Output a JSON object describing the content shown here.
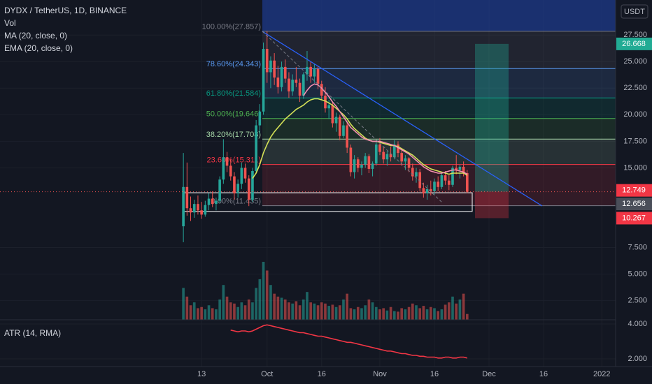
{
  "header": {
    "symbol": "DYDX / TetherUS, 1D, BINANCE",
    "volume_label": "Vol",
    "atr_title": "ATR (14, RMA)"
  },
  "chart_data": {
    "type": "candlestick",
    "currency": "USDT",
    "up_color": "#26a69a",
    "down_color": "#ef5350",
    "ylim": [
      0.7,
      30.8
    ],
    "yticks": [
      {
        "value": 27.5,
        "label": "27.500"
      },
      {
        "value": 25,
        "label": "25.000"
      },
      {
        "value": 22.5,
        "label": "22.500"
      },
      {
        "value": 20,
        "label": "20.000"
      },
      {
        "value": 17.5,
        "label": "17.500"
      },
      {
        "value": 15,
        "label": "15.000"
      },
      {
        "value": 7.5,
        "label": "7.500"
      },
      {
        "value": 5,
        "label": "5.000"
      },
      {
        "value": 2.5,
        "label": "2.500"
      }
    ],
    "xlim": [
      -50.4,
      118.8
    ],
    "xticks": [
      {
        "value": 5,
        "label": "13"
      },
      {
        "value": 23,
        "label": "Oct"
      },
      {
        "value": 38,
        "label": "16"
      },
      {
        "value": 54,
        "label": "Nov"
      },
      {
        "value": 69,
        "label": "16"
      },
      {
        "value": 84,
        "label": "Dec"
      },
      {
        "value": 99,
        "label": "16"
      },
      {
        "value": 115,
        "label": "2022"
      }
    ],
    "grid": true,
    "ohlc": [
      [
        9.5,
        16.4,
        8.0,
        13.2
      ],
      [
        13.2,
        15.5,
        10.5,
        11.2
      ],
      [
        11.2,
        12.3,
        10.0,
        10.8
      ],
      [
        10.8,
        12.0,
        10.3,
        11.6
      ],
      [
        11.6,
        12.4,
        10.6,
        11.0
      ],
      [
        11.0,
        11.8,
        10.2,
        10.6
      ],
      [
        10.6,
        11.9,
        10.4,
        11.5
      ],
      [
        11.5,
        12.6,
        11.0,
        12.1
      ],
      [
        12.1,
        12.8,
        11.3,
        11.6
      ],
      [
        11.6,
        12.2,
        11.0,
        11.9
      ],
      [
        11.9,
        14.2,
        11.7,
        13.9
      ],
      [
        13.9,
        17.7,
        13.5,
        16.0
      ],
      [
        16.0,
        16.5,
        14.6,
        15.2
      ],
      [
        15.2,
        15.8,
        13.8,
        14.2
      ],
      [
        14.2,
        14.6,
        12.0,
        12.6
      ],
      [
        12.6,
        13.9,
        12.2,
        13.5
      ],
      [
        13.5,
        15.5,
        13.0,
        15.0
      ],
      [
        15.0,
        15.4,
        13.6,
        14.0
      ],
      [
        14.0,
        14.3,
        11.4,
        12.0
      ],
      [
        12.0,
        15.0,
        11.8,
        14.7
      ],
      [
        14.7,
        19.5,
        14.5,
        19.0
      ],
      [
        19.0,
        21.0,
        18.2,
        20.3
      ],
      [
        20.3,
        26.8,
        20.0,
        26.2
      ],
      [
        26.2,
        27.857,
        23.0,
        24.0
      ],
      [
        24.0,
        25.5,
        22.5,
        25.1
      ],
      [
        25.1,
        25.8,
        22.8,
        23.5
      ],
      [
        23.5,
        24.6,
        22.0,
        22.6
      ],
      [
        22.6,
        25.0,
        22.2,
        24.5
      ],
      [
        24.5,
        25.2,
        23.0,
        23.4
      ],
      [
        23.4,
        24.0,
        21.6,
        22.2
      ],
      [
        22.2,
        23.8,
        21.8,
        23.3
      ],
      [
        23.3,
        24.5,
        22.6,
        23.0
      ],
      [
        23.0,
        23.4,
        21.2,
        21.8
      ],
      [
        21.8,
        24.0,
        21.5,
        23.8
      ],
      [
        23.8,
        26.0,
        23.2,
        24.5
      ],
      [
        24.5,
        25.0,
        23.0,
        23.6
      ],
      [
        23.6,
        24.8,
        23.0,
        24.3
      ],
      [
        24.3,
        24.6,
        22.4,
        22.9
      ],
      [
        22.9,
        23.2,
        21.4,
        21.8
      ],
      [
        21.8,
        22.6,
        20.2,
        20.6
      ],
      [
        20.6,
        21.4,
        19.6,
        20.9
      ],
      [
        20.9,
        21.2,
        18.8,
        19.2
      ],
      [
        19.2,
        20.2,
        18.4,
        19.8
      ],
      [
        19.8,
        20.0,
        17.6,
        18.0
      ],
      [
        18.0,
        19.4,
        17.8,
        19.0
      ],
      [
        19.0,
        19.3,
        16.4,
        16.9
      ],
      [
        16.9,
        17.2,
        14.2,
        14.6
      ],
      [
        14.6,
        16.2,
        14.0,
        15.8
      ],
      [
        15.8,
        16.0,
        14.6,
        15.0
      ],
      [
        15.0,
        15.6,
        14.3,
        15.3
      ],
      [
        15.3,
        16.4,
        15.0,
        16.1
      ],
      [
        16.1,
        16.3,
        14.5,
        14.9
      ],
      [
        14.9,
        15.6,
        14.2,
        15.4
      ],
      [
        15.4,
        17.6,
        15.2,
        17.2
      ],
      [
        17.2,
        17.8,
        16.2,
        16.5
      ],
      [
        16.5,
        17.0,
        15.4,
        15.8
      ],
      [
        15.8,
        16.6,
        15.2,
        16.3
      ],
      [
        16.3,
        17.0,
        15.6,
        16.0
      ],
      [
        16.0,
        17.6,
        15.8,
        17.2
      ],
      [
        17.2,
        17.5,
        16.0,
        16.4
      ],
      [
        16.4,
        16.8,
        15.2,
        15.6
      ],
      [
        15.6,
        16.2,
        14.8,
        15.9
      ],
      [
        15.9,
        16.0,
        14.6,
        15.0
      ],
      [
        15.0,
        15.4,
        13.8,
        14.2
      ],
      [
        14.2,
        15.0,
        13.6,
        14.6
      ],
      [
        14.6,
        14.9,
        12.8,
        13.1
      ],
      [
        13.1,
        13.6,
        12.2,
        12.6
      ],
      [
        12.6,
        13.4,
        12.0,
        13.0
      ],
      [
        13.0,
        13.8,
        12.4,
        12.8
      ],
      [
        12.8,
        14.0,
        12.5,
        13.7
      ],
      [
        13.7,
        14.2,
        12.8,
        13.2
      ],
      [
        13.2,
        14.6,
        13.0,
        14.3
      ],
      [
        14.3,
        14.7,
        13.4,
        13.8
      ],
      [
        13.8,
        14.3,
        12.9,
        13.4
      ],
      [
        13.4,
        15.2,
        13.2,
        15.0
      ],
      [
        15.0,
        16.2,
        14.4,
        14.8
      ],
      [
        14.8,
        15.3,
        14.0,
        15.1
      ],
      [
        15.1,
        15.6,
        14.2,
        14.5
      ],
      [
        14.5,
        14.8,
        12.6,
        12.749
      ]
    ],
    "volume": [
      55,
      40,
      25,
      30,
      20,
      22,
      18,
      25,
      20,
      18,
      35,
      60,
      40,
      30,
      28,
      22,
      30,
      25,
      35,
      30,
      55,
      70,
      100,
      85,
      60,
      45,
      40,
      38,
      35,
      30,
      28,
      32,
      25,
      35,
      48,
      30,
      28,
      25,
      30,
      28,
      24,
      26,
      22,
      25,
      35,
      45,
      20,
      18,
      22,
      20,
      25,
      35,
      30,
      22,
      18,
      20,
      16,
      22,
      15,
      14,
      20,
      18,
      22,
      28,
      25,
      20,
      24,
      18,
      22,
      20,
      15,
      18,
      26,
      30,
      40,
      28,
      35,
      45,
      10
    ],
    "series": [
      {
        "name": "MA (20, close, 0)",
        "color": "#d4e157",
        "values": [
          null,
          null,
          null,
          null,
          null,
          null,
          null,
          null,
          null,
          null,
          null,
          null,
          null,
          null,
          null,
          null,
          null,
          null,
          null,
          14.0,
          14.5,
          15.3,
          16.4,
          17.2,
          17.9,
          18.4,
          18.8,
          19.2,
          19.6,
          19.9,
          20.2,
          20.5,
          20.7,
          20.9,
          21.2,
          21.4,
          21.5,
          21.5,
          21.4,
          21.3,
          21.1,
          20.9,
          20.6,
          20.3,
          20.0,
          19.6,
          19.1,
          18.7,
          18.4,
          18.1,
          17.8,
          17.6,
          17.5,
          17.5,
          17.4,
          17.3,
          17.2,
          17.1,
          17.1,
          17.0,
          16.8,
          16.6,
          16.4,
          16.2,
          15.9,
          15.6,
          15.3,
          15.1,
          14.9,
          14.8,
          14.7,
          14.6,
          14.5,
          14.4,
          14.5,
          14.5,
          14.5,
          14.5,
          14.3
        ]
      },
      {
        "name": "EMA (20, close, 0)",
        "color": "#f48fb1",
        "values": [
          null,
          null,
          null,
          null,
          null,
          null,
          null,
          null,
          null,
          null,
          null,
          null,
          null,
          null,
          null,
          null,
          null,
          null,
          null,
          null,
          null,
          null,
          null,
          null,
          null,
          null,
          null,
          null,
          null,
          null,
          null,
          null,
          null,
          21.8,
          22.3,
          22.7,
          22.9,
          22.8,
          22.5,
          22.1,
          21.7,
          21.2,
          20.8,
          20.3,
          19.8,
          19.3,
          18.8,
          18.5,
          18.2,
          17.9,
          17.7,
          17.6,
          17.5,
          17.5,
          17.5,
          17.4,
          17.3,
          17.2,
          17.1,
          16.9,
          16.7,
          16.5,
          16.3,
          16.0,
          15.7,
          15.4,
          15.1,
          14.9,
          14.7,
          14.6,
          14.5,
          14.5,
          14.6,
          14.7,
          14.8,
          14.8,
          14.7,
          14.6,
          14.4
        ]
      }
    ],
    "fib": [
      {
        "label": "100.00%(27.857)",
        "value": 27.857,
        "color": "#787b86"
      },
      {
        "label": "78.60%(24.343)",
        "value": 24.343,
        "color": "#5b9cf6"
      },
      {
        "label": "61.80%(21.584)",
        "value": 21.584,
        "color": "#089981"
      },
      {
        "label": "50.00%(19.646)",
        "value": 19.646,
        "color": "#4caf50"
      },
      {
        "label": "38.20%(17.708)",
        "value": 17.708,
        "color": "#a5d6a7"
      },
      {
        "label": "23.60%(15.311)",
        "value": 15.311,
        "color": "#f23645"
      },
      {
        "label": "0.00%(11.435)",
        "value": 11.435,
        "color": "#787b86"
      }
    ],
    "position": {
      "target": 26.668,
      "entry": 12.749,
      "stop": 10.267,
      "box": [
        12.656,
        10.9
      ]
    },
    "atr": {
      "color": "#f23645",
      "ylim": [
        1.56,
        4.24
      ],
      "yticks": [
        {
          "value": 4,
          "label": "4.000"
        },
        {
          "value": 2,
          "label": "2.000"
        }
      ],
      "values": [
        null,
        null,
        null,
        null,
        null,
        null,
        null,
        null,
        null,
        null,
        null,
        null,
        null,
        3.65,
        3.6,
        3.55,
        3.6,
        3.6,
        3.55,
        3.6,
        3.7,
        3.8,
        3.9,
        3.95,
        3.9,
        3.85,
        3.8,
        3.75,
        3.7,
        3.65,
        3.6,
        3.55,
        3.5,
        3.5,
        3.45,
        3.4,
        3.35,
        3.3,
        3.3,
        3.25,
        3.2,
        3.15,
        3.1,
        3.05,
        3.0,
        2.95,
        2.95,
        2.9,
        2.85,
        2.8,
        2.75,
        2.7,
        2.65,
        2.6,
        2.55,
        2.5,
        2.45,
        2.45,
        2.4,
        2.35,
        2.3,
        2.3,
        2.25,
        2.2,
        2.2,
        2.15,
        2.15,
        2.1,
        2.1,
        2.1,
        2.05,
        2.05,
        2.1,
        2.1,
        2.05,
        2.05,
        2.1,
        2.1,
        2.05
      ]
    }
  }
}
